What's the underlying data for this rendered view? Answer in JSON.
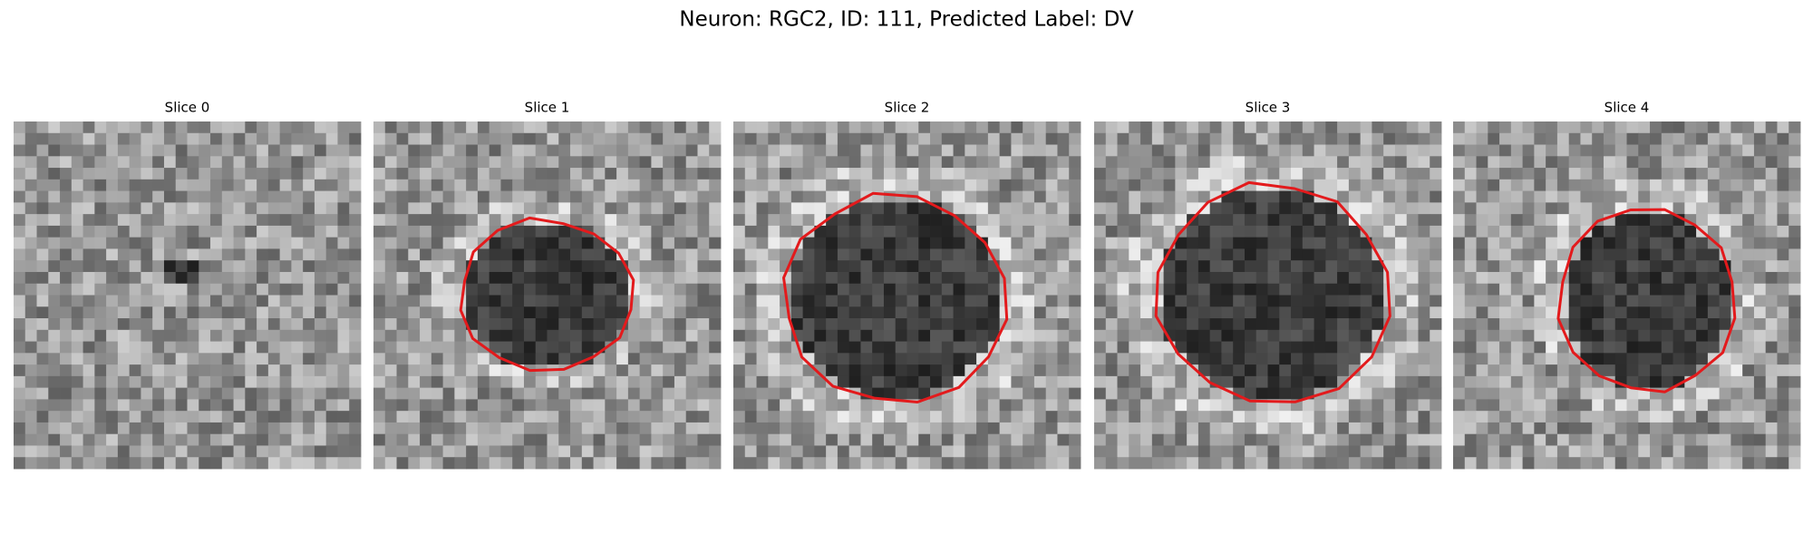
{
  "title": "Neuron: RGC2, ID: 111, Predicted Label: DV",
  "panels": [
    {
      "title": "Slice 0"
    },
    {
      "title": "Slice 1"
    },
    {
      "title": "Slice 2"
    },
    {
      "title": "Slice 3"
    },
    {
      "title": "Slice 4"
    }
  ]
}
